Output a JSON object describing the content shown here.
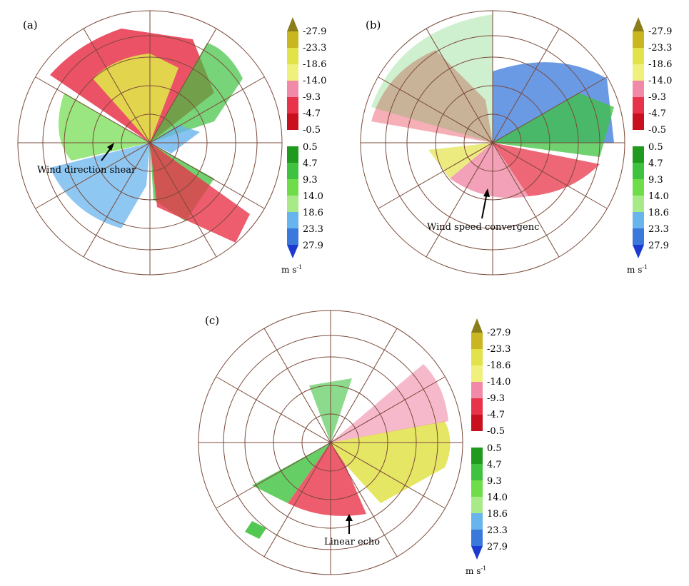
{
  "panels": [
    {
      "label": "(a)",
      "annotation": "Wind direction shear"
    },
    {
      "label": "(b)",
      "annotation": "Wind speed convergenc"
    },
    {
      "label": "(c)",
      "annotation": "Linear echo"
    }
  ],
  "colorbar": {
    "negative_ticks": [
      "-27.9",
      "-23.3",
      "-18.6",
      "-14.0",
      "-9.3",
      "-4.7",
      "-0.5"
    ],
    "positive_ticks": [
      "0.5",
      "4.7",
      "9.3",
      "14.0",
      "18.6",
      "23.3",
      "27.9"
    ],
    "negative_colors": [
      "#8b7d1a",
      "#c9b722",
      "#e2e24a",
      "#f0f07c",
      "#f08aa8",
      "#e8344a",
      "#c8101e"
    ],
    "positive_colors": [
      "#1f9a1f",
      "#3fc23f",
      "#6fdc4a",
      "#a8ea88",
      "#68b4ec",
      "#3a78dc",
      "#1a3ad0",
      "#0a10b0"
    ],
    "unit_base": "m  s",
    "unit_exp": "-1"
  }
}
